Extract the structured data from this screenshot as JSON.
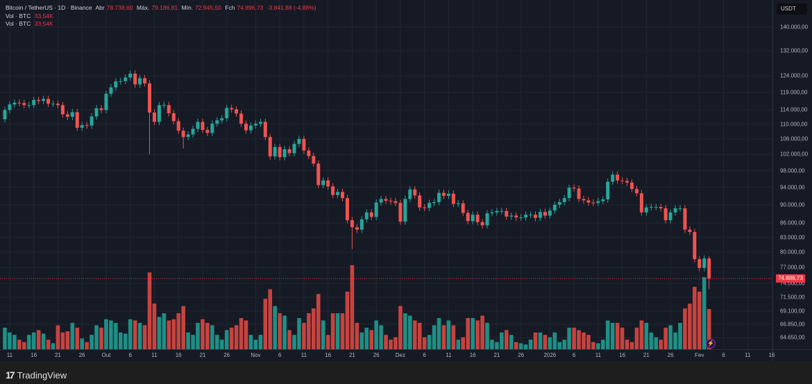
{
  "legend": {
    "symbol": "Bitcoin / TetherUS · 1D · Binance",
    "open_label": "Abr",
    "open": "78.738,60",
    "high_label": "Máx.",
    "high": "79.186,81",
    "low_label": "Mín.",
    "low": "72.945,50",
    "close_label": "Fch",
    "close": "74.896,73",
    "change": "-3.841,88 (-4,88%)",
    "vol_rows": [
      {
        "label": "Vol · BTC",
        "value": "33,54K"
      },
      {
        "label": "Vol · BTC",
        "value": "33,54K"
      }
    ]
  },
  "currency": "USDT",
  "current_price_label": "74.896,73",
  "brand": "TradingView",
  "colors": {
    "up": "#26a69a",
    "down": "#ef5350",
    "bg": "#161a25",
    "grid": "#222633"
  },
  "chart_data": {
    "type": "candlestick",
    "scale": "log",
    "unit": "thousand USDT",
    "first_date": "2025-09-10",
    "first_open": 111.3,
    "closes": [
      113.9,
      115.5,
      116.0,
      115.9,
      115.3,
      115.3,
      116.8,
      116.5,
      117.1,
      115.7,
      115.7,
      115.3,
      112.7,
      112.0,
      113.3,
      109.0,
      109.7,
      109.6,
      112.1,
      114.4,
      113.9,
      118.6,
      120.5,
      122.3,
      122.4,
      123.5,
      124.7,
      121.4,
      123.3,
      121.7,
      113.2,
      110.6,
      115.3,
      115.3,
      113.0,
      110.8,
      108.2,
      106.5,
      107.2,
      108.7,
      110.6,
      108.4,
      107.6,
      110.1,
      111.0,
      111.6,
      114.5,
      114.1,
      112.9,
      110.1,
      108.3,
      109.6,
      110.1,
      110.6,
      106.5,
      101.5,
      103.9,
      101.3,
      103.3,
      102.3,
      104.7,
      106.0,
      103.0,
      101.6,
      99.7,
      94.5,
      95.6,
      94.2,
      92.2,
      92.9,
      91.5,
      86.6,
      85.1,
      84.6,
      86.8,
      88.3,
      87.3,
      90.5,
      91.3,
      90.9,
      90.8,
      90.4,
      86.3,
      91.3,
      93.5,
      92.1,
      89.4,
      89.3,
      90.4,
      90.6,
      92.7,
      92.0,
      92.5,
      90.2,
      90.3,
      88.2,
      86.4,
      87.8,
      86.2,
      85.5,
      88.1,
      88.3,
      88.6,
      88.6,
      87.4,
      87.6,
      87.2,
      87.2,
      87.8,
      87.8,
      87.1,
      88.4,
      87.6,
      88.7,
      90.0,
      90.6,
      91.5,
      93.9,
      93.7,
      91.3,
      91.0,
      90.5,
      90.4,
      90.8,
      91.2,
      95.3,
      97.0,
      95.6,
      95.5,
      95.1,
      93.6,
      92.6,
      88.3,
      89.4,
      89.5,
      89.5,
      89.2,
      86.6,
      88.3,
      89.2,
      89.2,
      84.6,
      84.1,
      78.6,
      76.9,
      78.7386,
      74.89673
    ],
    "wick_overrides": [
      {
        "index": 30,
        "low": 102.0
      },
      {
        "index": 37,
        "low": 103.5
      },
      {
        "index": 72,
        "low": 80.6
      },
      {
        "index": 146,
        "high": 79.18681,
        "low": 72.9455
      }
    ],
    "volume_unit": "K BTC",
    "volumes": [
      18,
      14,
      12,
      8,
      6,
      12,
      14,
      16,
      13,
      8,
      5,
      20,
      14,
      15,
      22,
      18,
      9,
      6,
      12,
      20,
      18,
      25,
      24,
      22,
      14,
      13,
      25,
      24,
      22,
      20,
      64,
      38,
      27,
      30,
      24,
      25,
      30,
      36,
      14,
      12,
      22,
      25,
      22,
      20,
      12,
      8,
      16,
      18,
      20,
      26,
      24,
      12,
      8,
      12,
      42,
      50,
      36,
      30,
      28,
      16,
      12,
      26,
      22,
      30,
      34,
      46,
      24,
      12,
      30,
      30,
      30,
      48,
      70,
      22,
      14,
      18,
      16,
      24,
      20,
      12,
      8,
      10,
      36,
      30,
      28,
      24,
      22,
      10,
      12,
      20,
      26,
      20,
      24,
      20,
      8,
      10,
      26,
      26,
      24,
      28,
      22,
      8,
      6,
      14,
      16,
      12,
      6,
      5,
      4,
      8,
      14,
      14,
      12,
      10,
      14,
      6,
      8,
      18,
      18,
      16,
      14,
      12,
      6,
      5,
      8,
      24,
      22,
      22,
      18,
      8,
      6,
      18,
      24,
      22,
      14,
      10,
      8,
      18,
      20,
      14,
      22,
      34,
      38,
      52,
      48,
      60,
      33.54
    ],
    "y_ticks": [
      {
        "value": 140000,
        "label": "140.000,00"
      },
      {
        "value": 132000,
        "label": "132.000,00"
      },
      {
        "value": 124000,
        "label": "124.000,00"
      },
      {
        "value": 119000,
        "label": "119.000,00"
      },
      {
        "value": 114000,
        "label": "114.000,00"
      },
      {
        "value": 110000,
        "label": "110.000,00"
      },
      {
        "value": 106000,
        "label": "106.000,00"
      },
      {
        "value": 102000,
        "label": "102.000,00"
      },
      {
        "value": 98000,
        "label": "98.000,00"
      },
      {
        "value": 94000,
        "label": "94.000,00"
      },
      {
        "value": 90000,
        "label": "90.000,00"
      },
      {
        "value": 86000,
        "label": "86.000,00"
      },
      {
        "value": 83000,
        "label": "83.000,00"
      },
      {
        "value": 80000,
        "label": "80.000,00"
      },
      {
        "value": 77000,
        "label": "77.000,00"
      },
      {
        "value": 74000,
        "label": "74.000,00"
      },
      {
        "value": 71500,
        "label": "71.500,00"
      },
      {
        "value": 69100,
        "label": "69.100,00"
      },
      {
        "value": 66850,
        "label": "66.850,00"
      },
      {
        "value": 64650,
        "label": "64.650,00"
      }
    ],
    "x_ticks": [
      {
        "day": 1,
        "label": "11"
      },
      {
        "day": 6,
        "label": "16"
      },
      {
        "day": 11,
        "label": "21"
      },
      {
        "day": 16,
        "label": "26"
      },
      {
        "day": 21,
        "label": "Out"
      },
      {
        "day": 26,
        "label": "6"
      },
      {
        "day": 31,
        "label": "11"
      },
      {
        "day": 36,
        "label": "16"
      },
      {
        "day": 41,
        "label": "21"
      },
      {
        "day": 46,
        "label": "26"
      },
      {
        "day": 52,
        "label": "Nov"
      },
      {
        "day": 57,
        "label": "6"
      },
      {
        "day": 62,
        "label": "11"
      },
      {
        "day": 67,
        "label": "16"
      },
      {
        "day": 72,
        "label": "21"
      },
      {
        "day": 77,
        "label": "26"
      },
      {
        "day": 82,
        "label": "Dez"
      },
      {
        "day": 87,
        "label": "6"
      },
      {
        "day": 92,
        "label": "11"
      },
      {
        "day": 97,
        "label": "16"
      },
      {
        "day": 102,
        "label": "21"
      },
      {
        "day": 107,
        "label": "26"
      },
      {
        "day": 113,
        "label": "2026"
      },
      {
        "day": 118,
        "label": "6"
      },
      {
        "day": 123,
        "label": "11"
      },
      {
        "day": 128,
        "label": "16"
      },
      {
        "day": 133,
        "label": "21"
      },
      {
        "day": 138,
        "label": "26"
      },
      {
        "day": 144,
        "label": "Fev"
      },
      {
        "day": 149,
        "label": "6"
      },
      {
        "day": 154,
        "label": "11"
      },
      {
        "day": 159,
        "label": "16"
      }
    ],
    "current_price": 74896.73
  }
}
